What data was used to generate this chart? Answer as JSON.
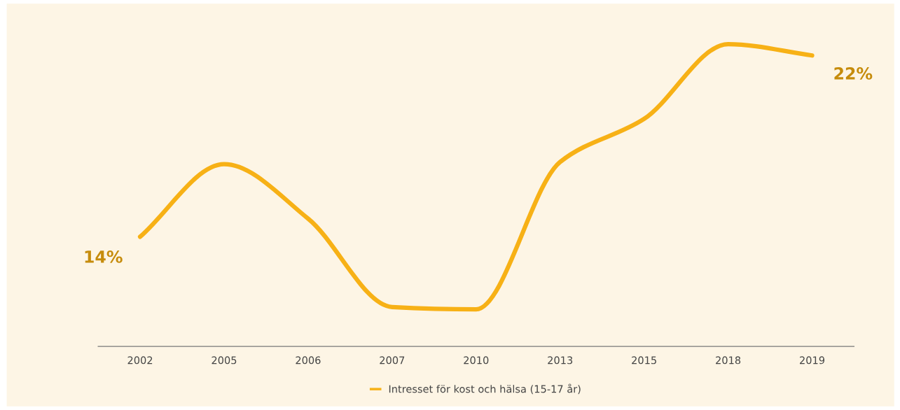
{
  "chart_data": {
    "type": "line",
    "categories": [
      "2002",
      "2005",
      "2006",
      "2007",
      "2010",
      "2013",
      "2015",
      "2018",
      "2019"
    ],
    "series": [
      {
        "name": "Intresset för kost och hälsa (15-17 år)",
        "color": "#f7b116",
        "values": [
          14,
          17.2,
          14.8,
          10.9,
          10.8,
          17.3,
          19.2,
          22.5,
          22
        ],
        "value_labels": [
          "14%",
          null,
          null,
          null,
          null,
          null,
          null,
          null,
          "22%"
        ]
      }
    ],
    "tick_labels": "x",
    "grid": false,
    "legend": "bottom",
    "marker": "none",
    "line_style": "solid"
  }
}
